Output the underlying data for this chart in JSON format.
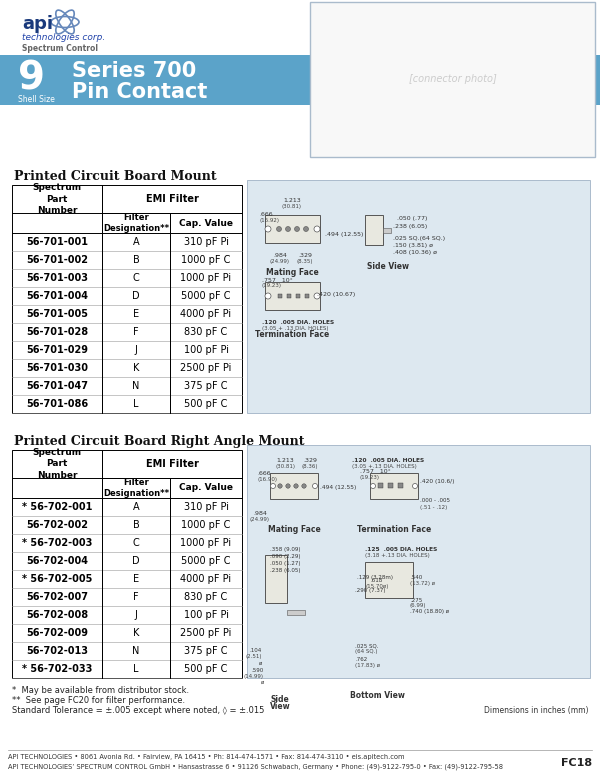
{
  "title_line1": "Series 700",
  "title_line2": "Pin Contact",
  "shell_size": "9",
  "shell_size_label": "Shell Size",
  "header_bg": "#5ba3c9",
  "table1_title": "Printed Circuit Board Mount",
  "table2_title": "Printed Circuit Board Right Angle Mount",
  "emi_filter_label": "EMI Filter",
  "table1_rows": [
    [
      "56-701-001",
      "A",
      "310 pF Pi"
    ],
    [
      "56-701-002",
      "B",
      "1000 pF C"
    ],
    [
      "56-701-003",
      "C",
      "1000 pF Pi"
    ],
    [
      "56-701-004",
      "D",
      "5000 pF C"
    ],
    [
      "56-701-005",
      "E",
      "4000 pF Pi"
    ],
    [
      "56-701-028",
      "F",
      "830 pF C"
    ],
    [
      "56-701-029",
      "J",
      "100 pF Pi"
    ],
    [
      "56-701-030",
      "K",
      "2500 pF Pi"
    ],
    [
      "56-701-047",
      "N",
      "375 pF C"
    ],
    [
      "56-701-086",
      "L",
      "500 pF C"
    ]
  ],
  "table1_shaded": [
    0,
    2,
    6,
    7
  ],
  "table2_rows": [
    [
      "* 56-702-001",
      "A",
      "310 pF Pi"
    ],
    [
      "56-702-002",
      "B",
      "1000 pF C"
    ],
    [
      "* 56-702-003",
      "C",
      "1000 pF Pi"
    ],
    [
      "56-702-004",
      "D",
      "5000 pF C"
    ],
    [
      "* 56-702-005",
      "E",
      "4000 pF Pi"
    ],
    [
      "56-702-007",
      "F",
      "830 pF C"
    ],
    [
      "56-702-008",
      "J",
      "100 pF Pi"
    ],
    [
      "56-702-009",
      "K",
      "2500 pF Pi"
    ],
    [
      "56-702-013",
      "N",
      "375 pF C"
    ],
    [
      "* 56-702-033",
      "L",
      "500 pF C"
    ]
  ],
  "table2_shaded": [
    0,
    2,
    6,
    7
  ],
  "footnote1": "*  May be available from distributor stock.",
  "footnote2": "**  See page FC20 for filter performance.",
  "footnote3": "Standard Tolerance = ±.005 except where noted, ◊ = ±.015",
  "footer1": "API TECHNOLOGIES • 8061 Avonia Rd. • Fairview, PA 16415 • Ph: 814-474-1571 • Fax: 814-474-3110 • eis.apitech.com",
  "footer2": "API TECHNOLOGIES’ SPECTRUM CONTROL GmbH • Hansastrasse 6 • 91126 Schwabach, Germany • Phone: (49)-9122-795-0 • Fax: (49)-9122-795-58",
  "page_ref": "FC18",
  "dim_note": "Dimensions in inches (mm)",
  "bg_color": "#ffffff",
  "row_shade": "#e2e2e2",
  "diag_bg": "#dde8f0",
  "diag_border": "#aabbcc"
}
